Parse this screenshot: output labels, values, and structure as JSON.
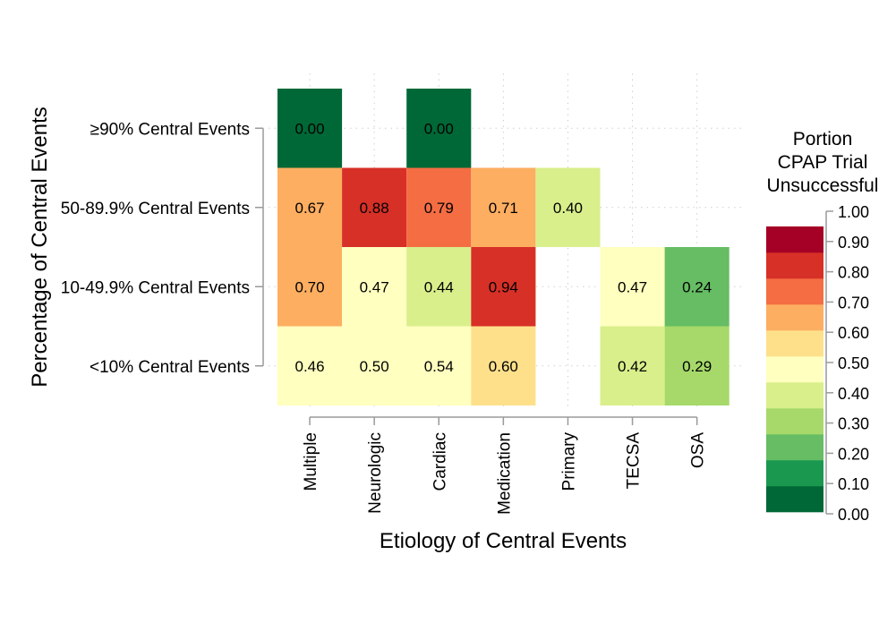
{
  "chart_data": {
    "type": "heatmap",
    "xlabel": "Etiology of Central Events",
    "ylabel": "Percentage of Central Events",
    "x_categories": [
      "Multiple",
      "Neurologic",
      "Cardiac",
      "Medication",
      "Primary",
      "TECSA",
      "OSA"
    ],
    "y_categories": [
      "≥90% Central Events",
      "50-89.9% Central Events",
      "10-49.9% Central Events",
      "<10% Central Events"
    ],
    "cells": [
      {
        "x": "Multiple",
        "y": "≥90% Central Events",
        "value": 0.0,
        "label": "0.00"
      },
      {
        "x": "Cardiac",
        "y": "≥90% Central Events",
        "value": 0.0,
        "label": "0.00"
      },
      {
        "x": "Multiple",
        "y": "50-89.9% Central Events",
        "value": 0.67,
        "label": "0.67"
      },
      {
        "x": "Neurologic",
        "y": "50-89.9% Central Events",
        "value": 0.88,
        "label": "0.88"
      },
      {
        "x": "Cardiac",
        "y": "50-89.9% Central Events",
        "value": 0.79,
        "label": "0.79"
      },
      {
        "x": "Medication",
        "y": "50-89.9% Central Events",
        "value": 0.71,
        "label": "0.71"
      },
      {
        "x": "Primary",
        "y": "50-89.9% Central Events",
        "value": 0.4,
        "label": "0.40"
      },
      {
        "x": "Multiple",
        "y": "10-49.9% Central Events",
        "value": 0.7,
        "label": "0.70"
      },
      {
        "x": "Neurologic",
        "y": "10-49.9% Central Events",
        "value": 0.47,
        "label": "0.47"
      },
      {
        "x": "Cardiac",
        "y": "10-49.9% Central Events",
        "value": 0.44,
        "label": "0.44"
      },
      {
        "x": "Medication",
        "y": "10-49.9% Central Events",
        "value": 0.94,
        "label": "0.94"
      },
      {
        "x": "TECSA",
        "y": "10-49.9% Central Events",
        "value": 0.47,
        "label": "0.47"
      },
      {
        "x": "OSA",
        "y": "10-49.9% Central Events",
        "value": 0.24,
        "label": "0.24"
      },
      {
        "x": "Multiple",
        "y": "<10% Central Events",
        "value": 0.46,
        "label": "0.46"
      },
      {
        "x": "Neurologic",
        "y": "<10% Central Events",
        "value": 0.5,
        "label": "0.50"
      },
      {
        "x": "Cardiac",
        "y": "<10% Central Events",
        "value": 0.54,
        "label": "0.54"
      },
      {
        "x": "Medication",
        "y": "<10% Central Events",
        "value": 0.6,
        "label": "0.60"
      },
      {
        "x": "TECSA",
        "y": "<10% Central Events",
        "value": 0.42,
        "label": "0.42"
      },
      {
        "x": "OSA",
        "y": "<10% Central Events",
        "value": 0.29,
        "label": "0.29"
      }
    ],
    "legend": {
      "title_lines": [
        "Portion",
        "CPAP Trial",
        "Unsuccessful"
      ],
      "tick_labels": [
        "1.00",
        "0.90",
        "0.80",
        "0.70",
        "0.60",
        "0.50",
        "0.40",
        "0.30",
        "0.20",
        "0.10",
        "0.00"
      ],
      "range": [
        0,
        1
      ],
      "placement": "right"
    },
    "color_bins": [
      "#006837",
      "#1a9850",
      "#66bd63",
      "#a6d96a",
      "#d9ef8b",
      "#ffffbf",
      "#fee08b",
      "#fdae61",
      "#f46d43",
      "#d73027",
      "#a50026"
    ],
    "grid": true
  }
}
